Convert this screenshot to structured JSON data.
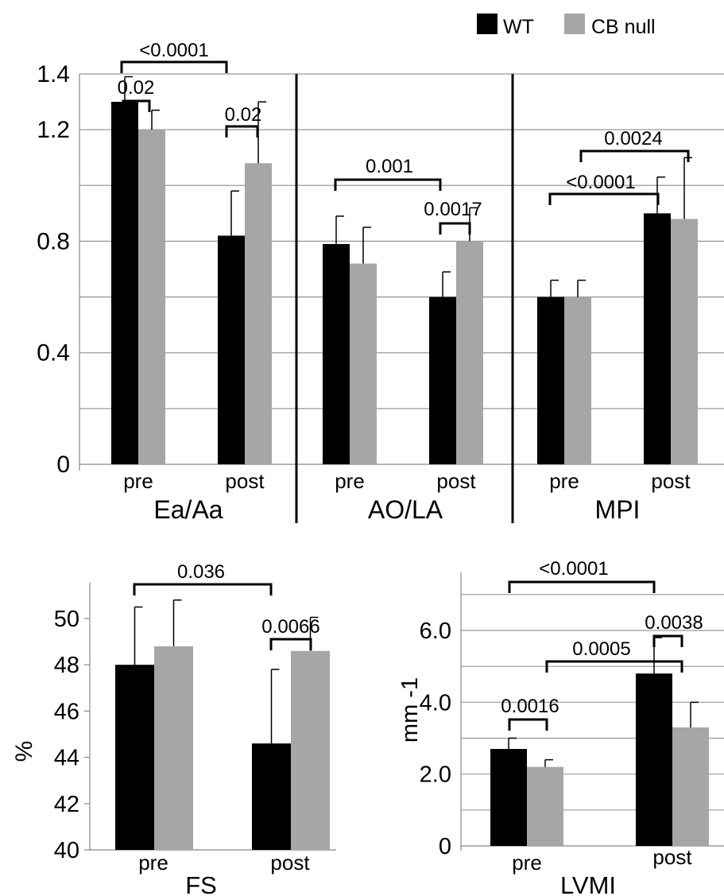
{
  "legend": {
    "position": "top-right",
    "items": [
      {
        "label": "WT",
        "color": "#000000"
      },
      {
        "label": "CB null",
        "color": "#a6a6a6"
      }
    ]
  },
  "chart_data": [
    {
      "type": "bar",
      "grid": true,
      "ylim": [
        0,
        1.4
      ],
      "yticks": [
        "0",
        "0.4",
        "0.8",
        "1.2",
        "1.4"
      ],
      "groups": [
        {
          "label": "Ea/Aa",
          "categories": [
            "pre",
            "post"
          ],
          "series": [
            {
              "name": "WT",
              "values": [
                1.3,
                0.82
              ],
              "errors": [
                0.09,
                0.16
              ]
            },
            {
              "name": "CB null",
              "values": [
                1.2,
                1.08
              ],
              "errors": [
                0.07,
                0.22
              ]
            }
          ],
          "annotations": [
            "0.02",
            "0.02",
            "<0.0001"
          ]
        },
        {
          "label": "AO/LA",
          "categories": [
            "pre",
            "post"
          ],
          "series": [
            {
              "name": "WT",
              "values": [
                0.79,
                0.6
              ],
              "errors": [
                0.1,
                0.09
              ]
            },
            {
              "name": "CB null",
              "values": [
                0.72,
                0.8
              ],
              "errors": [
                0.13,
                0.12
              ]
            }
          ],
          "annotations": [
            "0.001",
            "0.0017"
          ]
        },
        {
          "label": "MPI",
          "categories": [
            "pre",
            "post"
          ],
          "series": [
            {
              "name": "WT",
              "values": [
                0.6,
                0.9
              ],
              "errors": [
                0.06,
                0.13
              ]
            },
            {
              "name": "CB null",
              "values": [
                0.6,
                0.88
              ],
              "errors": [
                0.06,
                0.22
              ]
            }
          ],
          "annotations": [
            "<0.0001",
            "0.0024"
          ]
        }
      ]
    },
    {
      "type": "bar",
      "grid": false,
      "xlabel": "FS",
      "ylabel": "%",
      "ylim": [
        40,
        52
      ],
      "yticks": [
        "40",
        "42",
        "44",
        "46",
        "48",
        "50"
      ],
      "categories": [
        "pre",
        "post"
      ],
      "series": [
        {
          "name": "WT",
          "values": [
            48.0,
            44.6
          ],
          "errors": [
            2.5,
            3.2
          ]
        },
        {
          "name": "CB null",
          "values": [
            48.8,
            48.6
          ],
          "errors": [
            2.0,
            1.45
          ]
        }
      ],
      "annotations": [
        "0.036",
        "0.0066"
      ]
    },
    {
      "type": "bar",
      "grid": true,
      "xlabel": "LVMI",
      "ylabel": "mm -1",
      "ylim": [
        0,
        7
      ],
      "yticks": [
        "0",
        "2.0",
        "4.0",
        "6.0"
      ],
      "categories": [
        "pre",
        "post"
      ],
      "series": [
        {
          "name": "WT",
          "values": [
            2.7,
            4.8
          ],
          "errors": [
            0.3,
            1.0
          ]
        },
        {
          "name": "CB null",
          "values": [
            2.2,
            3.3
          ],
          "errors": [
            0.2,
            0.7
          ]
        }
      ],
      "annotations": [
        "<0.0001",
        "0.0038",
        "0.0005",
        "0.0016"
      ]
    }
  ]
}
